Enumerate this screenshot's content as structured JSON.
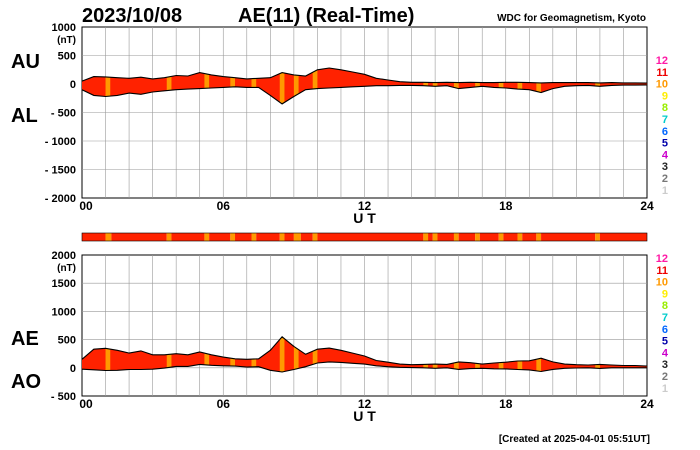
{
  "header": {
    "date": "2023/10/08",
    "title": "AE(11) (Real-Time)",
    "source": "WDC for Geomagnetism, Kyoto"
  },
  "footer": {
    "created": "[Created at 2025-04-01 05:51UT]"
  },
  "colors": {
    "fill_main": "#ff2200",
    "fill_alt": "#ff9900",
    "line": "#000000",
    "grid": "#999999"
  },
  "legend": {
    "labels": [
      "12",
      "11",
      "10",
      "9",
      "8",
      "7",
      "6",
      "5",
      "4",
      "3",
      "2",
      "1"
    ],
    "colors": [
      "#ff1aa6",
      "#ee0000",
      "#ff9900",
      "#ffee00",
      "#99ee00",
      "#00cccc",
      "#0066ff",
      "#0000aa",
      "#cc00cc",
      "#222222",
      "#777777",
      "#cccccc"
    ]
  },
  "status_bar": {
    "description": "station-count bar, 12 = red, 10 = orange",
    "segments": [
      {
        "start": 0.0,
        "end": 1.0,
        "level": 12
      },
      {
        "start": 1.0,
        "end": 1.25,
        "level": 10
      },
      {
        "start": 1.25,
        "end": 3.6,
        "level": 12
      },
      {
        "start": 3.6,
        "end": 3.8,
        "level": 10
      },
      {
        "start": 3.8,
        "end": 5.2,
        "level": 12
      },
      {
        "start": 5.2,
        "end": 5.4,
        "level": 10
      },
      {
        "start": 5.4,
        "end": 6.3,
        "level": 12
      },
      {
        "start": 6.3,
        "end": 6.5,
        "level": 10
      },
      {
        "start": 6.5,
        "end": 7.2,
        "level": 12
      },
      {
        "start": 7.2,
        "end": 7.4,
        "level": 10
      },
      {
        "start": 7.4,
        "end": 8.4,
        "level": 12
      },
      {
        "start": 8.4,
        "end": 8.6,
        "level": 10
      },
      {
        "start": 8.6,
        "end": 9.0,
        "level": 12
      },
      {
        "start": 9.0,
        "end": 9.3,
        "level": 10
      },
      {
        "start": 9.3,
        "end": 9.8,
        "level": 12
      },
      {
        "start": 9.8,
        "end": 10.0,
        "level": 10
      },
      {
        "start": 10.0,
        "end": 14.5,
        "level": 12
      },
      {
        "start": 14.5,
        "end": 14.7,
        "level": 10
      },
      {
        "start": 14.7,
        "end": 14.9,
        "level": 12
      },
      {
        "start": 14.9,
        "end": 15.1,
        "level": 10
      },
      {
        "start": 15.1,
        "end": 15.8,
        "level": 12
      },
      {
        "start": 15.8,
        "end": 16.0,
        "level": 10
      },
      {
        "start": 16.0,
        "end": 16.7,
        "level": 12
      },
      {
        "start": 16.7,
        "end": 16.9,
        "level": 10
      },
      {
        "start": 16.9,
        "end": 17.7,
        "level": 12
      },
      {
        "start": 17.7,
        "end": 17.9,
        "level": 10
      },
      {
        "start": 17.9,
        "end": 18.5,
        "level": 12
      },
      {
        "start": 18.5,
        "end": 18.7,
        "level": 10
      },
      {
        "start": 18.7,
        "end": 19.3,
        "level": 12
      },
      {
        "start": 19.3,
        "end": 19.5,
        "level": 10
      },
      {
        "start": 19.5,
        "end": 21.8,
        "level": 12
      },
      {
        "start": 21.8,
        "end": 22.0,
        "level": 10
      },
      {
        "start": 22.0,
        "end": 24.0,
        "level": 12
      }
    ]
  },
  "chart_data": [
    {
      "type": "area",
      "name": "AU/AL",
      "xlabel": "U T",
      "xlim": [
        0,
        24
      ],
      "xticks": [
        0,
        6,
        12,
        18,
        24
      ],
      "xtick_labels": [
        "00",
        "06",
        "12",
        "18",
        "24"
      ],
      "ylim": [
        -2000,
        1000
      ],
      "yticks": [
        1000,
        500,
        0,
        -500,
        -1000,
        -1500,
        -2000
      ],
      "ytick_labels": [
        "1000",
        "500",
        "0",
        "- 500",
        "- 1000",
        "- 1500",
        "- 2000"
      ],
      "y_unit": "(nT)",
      "side_labels": {
        "upper": "AU",
        "lower": "AL"
      },
      "x": [
        0,
        0.5,
        1,
        1.5,
        2,
        2.5,
        3,
        3.5,
        4,
        4.5,
        5,
        5.5,
        6,
        6.5,
        7,
        7.5,
        8,
        8.5,
        9,
        9.5,
        10,
        10.5,
        11,
        11.5,
        12,
        12.5,
        13,
        13.5,
        14,
        14.5,
        15,
        15.5,
        16,
        16.5,
        17,
        17.5,
        18,
        18.5,
        19,
        19.5,
        20,
        20.5,
        21,
        21.5,
        22,
        22.5,
        23,
        23.5,
        24
      ],
      "series": [
        {
          "name": "AU",
          "values": [
            50,
            130,
            125,
            110,
            100,
            120,
            90,
            110,
            150,
            140,
            200,
            160,
            130,
            110,
            90,
            100,
            110,
            200,
            160,
            140,
            250,
            280,
            250,
            210,
            170,
            100,
            70,
            40,
            30,
            30,
            25,
            30,
            25,
            30,
            25,
            25,
            30,
            30,
            25,
            20,
            25,
            25,
            25,
            25,
            20,
            25,
            20,
            20,
            15
          ]
        },
        {
          "name": "AL",
          "values": [
            -100,
            -200,
            -220,
            -200,
            -160,
            -180,
            -140,
            -120,
            -100,
            -90,
            -80,
            -70,
            -60,
            -50,
            -60,
            -60,
            -200,
            -350,
            -220,
            -100,
            -80,
            -70,
            -60,
            -50,
            -40,
            -30,
            -30,
            -25,
            -25,
            -30,
            -40,
            -30,
            -80,
            -60,
            -40,
            -60,
            -70,
            -90,
            -100,
            -150,
            -80,
            -40,
            -30,
            -25,
            -40,
            -25,
            -20,
            -20,
            -15
          ]
        }
      ]
    },
    {
      "type": "area",
      "name": "AE/AO",
      "xlabel": "U T",
      "xlim": [
        0,
        24
      ],
      "xticks": [
        0,
        6,
        12,
        18,
        24
      ],
      "xtick_labels": [
        "00",
        "06",
        "12",
        "18",
        "24"
      ],
      "ylim": [
        -500,
        2000
      ],
      "yticks": [
        2000,
        1500,
        1000,
        500,
        0,
        -500
      ],
      "ytick_labels": [
        "2000",
        "1500",
        "1000",
        "500",
        "0",
        "- 500"
      ],
      "y_unit": "(nT)",
      "side_labels": {
        "upper": "AE",
        "lower": "AO"
      },
      "x": [
        0,
        0.5,
        1,
        1.5,
        2,
        2.5,
        3,
        3.5,
        4,
        4.5,
        5,
        5.5,
        6,
        6.5,
        7,
        7.5,
        8,
        8.5,
        9,
        9.5,
        10,
        10.5,
        11,
        11.5,
        12,
        12.5,
        13,
        13.5,
        14,
        14.5,
        15,
        15.5,
        16,
        16.5,
        17,
        17.5,
        18,
        18.5,
        19,
        19.5,
        20,
        20.5,
        21,
        21.5,
        22,
        22.5,
        23,
        23.5,
        24
      ],
      "series": [
        {
          "name": "AE",
          "values": [
            150,
            330,
            345,
            310,
            260,
            300,
            230,
            230,
            250,
            230,
            280,
            230,
            190,
            160,
            150,
            160,
            310,
            550,
            380,
            240,
            330,
            350,
            310,
            260,
            210,
            130,
            100,
            65,
            55,
            60,
            65,
            60,
            105,
            90,
            65,
            85,
            100,
            120,
            125,
            170,
            105,
            65,
            55,
            50,
            60,
            50,
            40,
            40,
            30
          ]
        },
        {
          "name": "AO",
          "values": [
            -25,
            -35,
            -48,
            -45,
            -30,
            -30,
            -25,
            -5,
            25,
            25,
            60,
            45,
            35,
            30,
            15,
            20,
            -45,
            -75,
            -30,
            20,
            85,
            105,
            95,
            80,
            65,
            35,
            20,
            8,
            3,
            0,
            -8,
            0,
            -28,
            -15,
            -8,
            -18,
            -20,
            -30,
            -38,
            -65,
            -28,
            -8,
            -3,
            0,
            -10,
            0,
            0,
            0,
            0
          ]
        }
      ]
    }
  ],
  "orange_hours": [
    1.0,
    3.6,
    5.2,
    6.3,
    7.2,
    8.4,
    9.0,
    9.8,
    14.5,
    14.9,
    15.8,
    16.7,
    17.7,
    18.5,
    19.3,
    21.8
  ]
}
